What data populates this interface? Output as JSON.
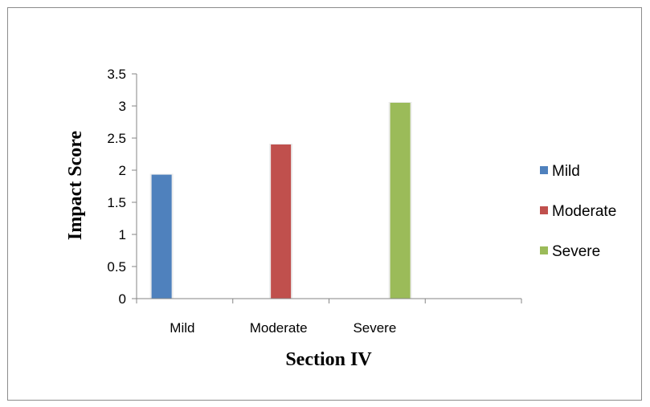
{
  "chart_data": {
    "type": "bar",
    "title": "",
    "xlabel": "Section IV",
    "ylabel": "Impact Score",
    "categories": [
      "Mild",
      "Moderate",
      "Severe"
    ],
    "series": [
      {
        "name": "Mild",
        "color": "#4F81BD",
        "values": [
          1.93,
          null,
          null
        ]
      },
      {
        "name": "Moderate",
        "color": "#C0504D",
        "values": [
          null,
          2.4,
          null
        ]
      },
      {
        "name": "Severe",
        "color": "#9BBB59",
        "values": [
          null,
          null,
          3.05
        ]
      }
    ],
    "ylim": [
      0,
      3.5
    ],
    "yticks": [
      "0",
      "0.5",
      "1",
      "1.5",
      "2",
      "2.5",
      "3",
      "3.5"
    ],
    "grid": false,
    "legend": {
      "position": "right",
      "entries": [
        "Mild",
        "Moderate",
        "Severe"
      ]
    }
  }
}
